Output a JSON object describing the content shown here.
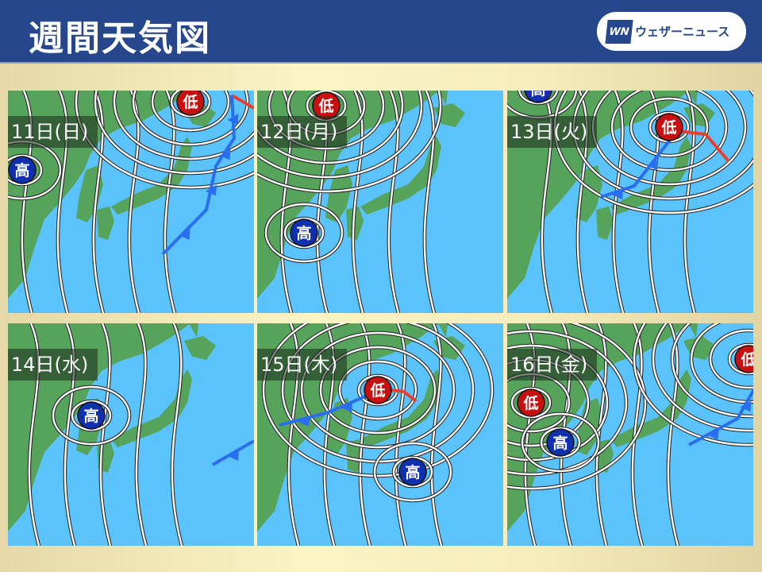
{
  "header": {
    "title": "週間天気図",
    "logo": {
      "mark": "WN",
      "text": "ウェザーニュース"
    }
  },
  "colors": {
    "header": "#26478b",
    "ocean": "#5bc3fb",
    "land": "#56a35c",
    "low": "#c81010",
    "high": "#1030b0",
    "cold_front": "#2a6ef0",
    "warm_front": "#e84030"
  },
  "symbols": {
    "low": "低",
    "high": "高"
  },
  "panels": [
    {
      "date": "11日(日)",
      "systems": [
        "低",
        "高"
      ]
    },
    {
      "date": "12日(月)",
      "systems": [
        "低",
        "高"
      ]
    },
    {
      "date": "13日(火)",
      "systems": [
        "高",
        "低"
      ]
    },
    {
      "date": "14日(水)",
      "systems": [
        "高"
      ]
    },
    {
      "date": "15日(木)",
      "systems": [
        "低",
        "高"
      ]
    },
    {
      "date": "16日(金)",
      "systems": [
        "低",
        "低",
        "高"
      ]
    }
  ]
}
